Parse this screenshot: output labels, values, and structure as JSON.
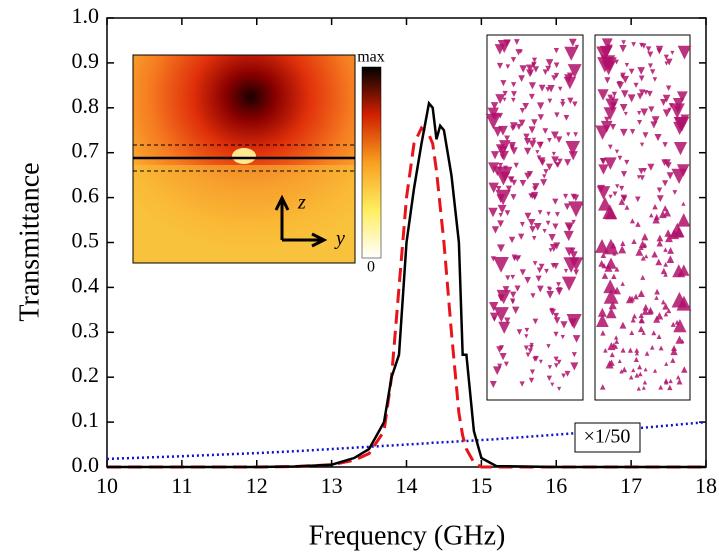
{
  "chart_data": {
    "type": "line",
    "x_label": "Frequency (GHz)",
    "y_label": "Transmittance",
    "x": [
      10,
      11,
      12,
      12.5,
      13,
      13.3,
      13.5,
      13.7,
      13.8,
      13.9,
      14.0,
      14.1,
      14.2,
      14.3,
      14.35,
      14.4,
      14.45,
      14.5,
      14.6,
      14.7,
      14.75,
      14.8,
      14.9,
      15.0,
      15.2,
      16,
      17,
      18
    ],
    "series": [
      {
        "color": "#000000",
        "dash": "solid",
        "values": [
          0,
          0,
          0,
          0.001,
          0.005,
          0.02,
          0.04,
          0.1,
          0.2,
          0.25,
          0.5,
          0.62,
          0.72,
          0.81,
          0.8,
          0.73,
          0.76,
          0.75,
          0.65,
          0.5,
          0.25,
          0.25,
          0.08,
          0.02,
          0.002,
          0,
          0,
          0
        ]
      },
      {
        "color": "#e8141c",
        "dash": "dashed",
        "values": [
          0,
          0,
          0,
          0.001,
          0.005,
          0.015,
          0.03,
          0.08,
          0.2,
          0.4,
          0.6,
          0.72,
          0.755,
          0.74,
          0.72,
          0.66,
          0.58,
          0.5,
          0.3,
          0.12,
          0.07,
          0.04,
          0.01,
          0,
          0,
          0,
          0,
          0
        ]
      },
      {
        "color": "#1010d0",
        "dash": "dotted",
        "values": [
          0.018,
          0.024,
          0.031,
          0.035,
          0.04,
          0.043,
          0.045,
          0.047,
          0.048,
          0.049,
          0.05,
          0.051,
          0.052,
          0.053,
          0.054,
          0.054,
          0.055,
          0.055,
          0.056,
          0.057,
          0.058,
          0.058,
          0.059,
          0.06,
          0.062,
          0.072,
          0.085,
          0.1
        ]
      }
    ],
    "xlim": [
      10,
      18
    ],
    "xticks": [
      10,
      11,
      12,
      13,
      14,
      15,
      16,
      17,
      18
    ],
    "ylim": [
      0,
      1.0
    ],
    "yticks": [
      {
        "value": 0,
        "label": "0.0"
      },
      0.1,
      0.2,
      0.3,
      0.4,
      0.5,
      0.6,
      0.7,
      0.8,
      0.9,
      {
        "value": 1.0,
        "label": "1.0"
      }
    ],
    "annotations": {
      "colorbar_max": "max",
      "colorbar_min": "0",
      "axis_z": "z",
      "axis_y": "y",
      "scale_note": "×1/50"
    }
  }
}
